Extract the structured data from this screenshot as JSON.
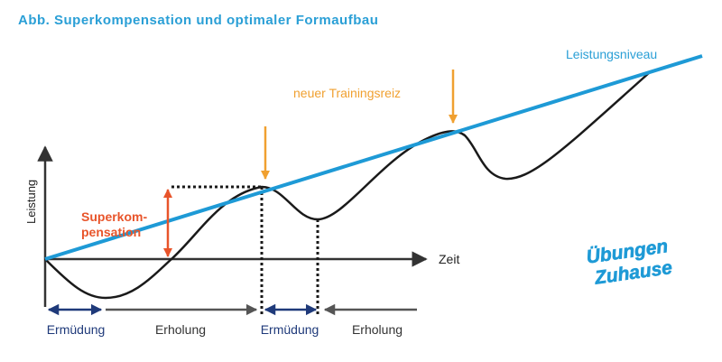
{
  "title": "Abb. Superkompensation und optimaler Formaufbau",
  "y_axis_label": "Leistung",
  "x_axis_label": "Zeit",
  "level_label": "Leistungsniveau",
  "stimulus_label": "neuer Trainingsreiz",
  "supercompensation_label_line1": "Superkom-",
  "supercompensation_label_line2": "pensation",
  "phases": [
    {
      "label": "Ermüdung"
    },
    {
      "label": "Erholung"
    },
    {
      "label": "Ermüdung"
    },
    {
      "label": "Erholung"
    }
  ],
  "logo": {
    "line1": "Übungen",
    "line2": "Zuhause"
  },
  "colors": {
    "title": "#2a9fd6",
    "level_line": "#1e9ad6",
    "stimulus_arrow": "#f0a030",
    "stimulus_text": "#f0a030",
    "supercomp": "#e8542a",
    "fatigue_arrow": "#1f3a7a",
    "recovery_arrow": "#555555",
    "curve": "#1a1a1a",
    "axis": "#333333",
    "logo_bg": "#1e9ad6"
  }
}
